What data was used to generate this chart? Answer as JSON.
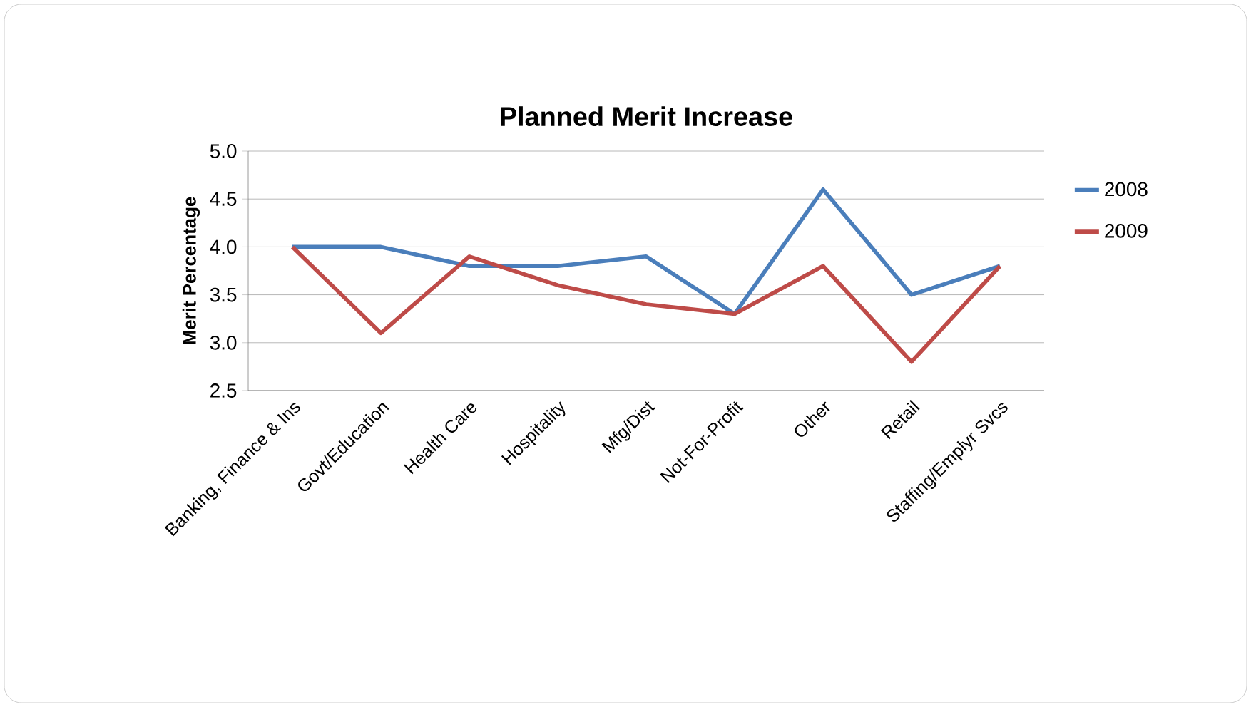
{
  "chart_data": {
    "type": "line",
    "title": "Planned Merit Increase",
    "ylabel": "Merit Percentage",
    "categories": [
      "Banking, Finance & Ins",
      "Govt/Education",
      "Health Care",
      "Hospitality",
      "Mfg/Dist",
      "Not-For-Profit",
      "Other",
      "Retail",
      "Staffing/Emplyr Svcs"
    ],
    "series": [
      {
        "name": "2008",
        "color": "#4a7ebb",
        "values": [
          4.0,
          4.0,
          3.8,
          3.8,
          3.9,
          3.3,
          4.6,
          3.5,
          3.8
        ]
      },
      {
        "name": "2009",
        "color": "#be4b48",
        "values": [
          4.0,
          3.1,
          3.9,
          3.6,
          3.4,
          3.3,
          3.8,
          2.8,
          3.8
        ]
      }
    ],
    "ylim": [
      2.5,
      5.0
    ],
    "yticks": [
      {
        "value": 2.5,
        "label": "2.5"
      },
      {
        "value": 3.0,
        "label": "3.0"
      },
      {
        "value": 3.5,
        "label": "3.5"
      },
      {
        "value": 4.0,
        "label": "4.0"
      },
      {
        "value": 4.5,
        "label": "4.5"
      },
      {
        "value": 5.0,
        "label": "5.0"
      }
    ],
    "grid": "y",
    "legend": "right",
    "marker": "none",
    "line_style": "solid"
  }
}
